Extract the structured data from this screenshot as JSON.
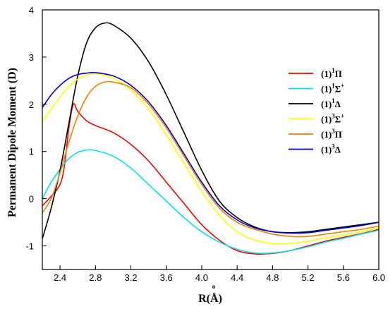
{
  "chart_data": {
    "type": "line",
    "xlabel": "R(Å)",
    "xlabel_main": "R(",
    "xlabel_unit": "Å",
    "xlabel_close": ")",
    "xlabel_ring": "o",
    "ylabel": "Permanent Dipole Moment (D)",
    "xlim": [
      2.2,
      6.0
    ],
    "ylim": [
      -1.5,
      4.0
    ],
    "xticks": [
      2.4,
      2.8,
      3.2,
      3.6,
      4.0,
      4.4,
      4.8,
      5.2,
      5.6,
      6.0
    ],
    "xtick_labels": [
      "2.4",
      "2.8",
      "3.2",
      "3.6",
      "4.0",
      "4.4",
      "4.8",
      "5.2",
      "5.6",
      "6.0"
    ],
    "yticks": [
      -1,
      0,
      1,
      2,
      3,
      4
    ],
    "ytick_labels": [
      "-1",
      "0",
      "1",
      "2",
      "3",
      "4"
    ],
    "grid": false,
    "legend_position": "right",
    "series": [
      {
        "name": "(1)1Π",
        "prefix": "(1)",
        "sup": "1",
        "symbol": "Π",
        "sup2": "",
        "color": "#ff0000",
        "points": [
          [
            2.2,
            -0.15
          ],
          [
            2.3,
            0.05
          ],
          [
            2.4,
            0.3
          ],
          [
            2.45,
            0.7
          ],
          [
            2.5,
            1.5
          ],
          [
            2.55,
            2.0
          ],
          [
            2.6,
            1.85
          ],
          [
            2.7,
            1.65
          ],
          [
            2.8,
            1.55
          ],
          [
            3.0,
            1.4
          ],
          [
            3.2,
            1.15
          ],
          [
            3.4,
            0.8
          ],
          [
            3.6,
            0.35
          ],
          [
            3.8,
            -0.1
          ],
          [
            4.0,
            -0.55
          ],
          [
            4.2,
            -0.88
          ],
          [
            4.4,
            -1.1
          ],
          [
            4.6,
            -1.17
          ],
          [
            4.8,
            -1.16
          ],
          [
            5.0,
            -1.1
          ],
          [
            5.2,
            -1.0
          ],
          [
            5.4,
            -0.9
          ],
          [
            5.6,
            -0.82
          ],
          [
            5.8,
            -0.74
          ],
          [
            6.0,
            -0.65
          ]
        ]
      },
      {
        "name": "(1)1Σ+",
        "prefix": "(1)",
        "sup": "1",
        "symbol": "Σ",
        "sup2": "+",
        "color": "#00e5ee",
        "points": [
          [
            2.2,
            0.0
          ],
          [
            2.3,
            0.35
          ],
          [
            2.4,
            0.62
          ],
          [
            2.5,
            0.85
          ],
          [
            2.6,
            0.98
          ],
          [
            2.7,
            1.03
          ],
          [
            2.8,
            1.02
          ],
          [
            3.0,
            0.9
          ],
          [
            3.2,
            0.65
          ],
          [
            3.4,
            0.3
          ],
          [
            3.6,
            -0.05
          ],
          [
            3.8,
            -0.4
          ],
          [
            4.0,
            -0.7
          ],
          [
            4.2,
            -0.92
          ],
          [
            4.4,
            -1.07
          ],
          [
            4.6,
            -1.15
          ],
          [
            4.8,
            -1.15
          ],
          [
            5.0,
            -1.1
          ],
          [
            5.2,
            -1.02
          ],
          [
            5.4,
            -0.92
          ],
          [
            5.6,
            -0.84
          ],
          [
            5.8,
            -0.75
          ],
          [
            6.0,
            -0.67
          ]
        ]
      },
      {
        "name": "(1)1Δ",
        "prefix": "(1)",
        "sup": "1",
        "symbol": "Δ",
        "sup2": "",
        "color": "#000000",
        "points": [
          [
            2.2,
            -0.85
          ],
          [
            2.3,
            -0.2
          ],
          [
            2.4,
            0.6
          ],
          [
            2.5,
            1.6
          ],
          [
            2.6,
            2.6
          ],
          [
            2.7,
            3.3
          ],
          [
            2.8,
            3.62
          ],
          [
            2.9,
            3.72
          ],
          [
            3.0,
            3.68
          ],
          [
            3.2,
            3.4
          ],
          [
            3.4,
            2.9
          ],
          [
            3.6,
            2.2
          ],
          [
            3.8,
            1.4
          ],
          [
            4.0,
            0.6
          ],
          [
            4.2,
            -0.05
          ],
          [
            4.4,
            -0.4
          ],
          [
            4.6,
            -0.6
          ],
          [
            4.8,
            -0.7
          ],
          [
            5.0,
            -0.72
          ],
          [
            5.2,
            -0.7
          ],
          [
            5.4,
            -0.65
          ],
          [
            5.6,
            -0.6
          ],
          [
            5.8,
            -0.55
          ],
          [
            6.0,
            -0.5
          ]
        ]
      },
      {
        "name": "(1)3Σ+",
        "prefix": "(1)",
        "sup": "3",
        "symbol": "Σ",
        "sup2": "+",
        "color": "#ffff00",
        "points": [
          [
            2.2,
            1.62
          ],
          [
            2.3,
            1.9
          ],
          [
            2.4,
            2.15
          ],
          [
            2.5,
            2.38
          ],
          [
            2.6,
            2.53
          ],
          [
            2.7,
            2.62
          ],
          [
            2.8,
            2.65
          ],
          [
            3.0,
            2.55
          ],
          [
            3.2,
            2.3
          ],
          [
            3.4,
            1.9
          ],
          [
            3.6,
            1.35
          ],
          [
            3.8,
            0.75
          ],
          [
            4.0,
            0.15
          ],
          [
            4.2,
            -0.35
          ],
          [
            4.4,
            -0.7
          ],
          [
            4.6,
            -0.88
          ],
          [
            4.8,
            -0.95
          ],
          [
            5.0,
            -0.95
          ],
          [
            5.2,
            -0.9
          ],
          [
            5.4,
            -0.83
          ],
          [
            5.6,
            -0.77
          ],
          [
            5.8,
            -0.7
          ],
          [
            6.0,
            -0.62
          ]
        ]
      },
      {
        "name": "(1)3Π",
        "prefix": "(1)",
        "sup": "3",
        "symbol": "Π",
        "sup2": "",
        "color": "#f08000",
        "points": [
          [
            2.2,
            -0.3
          ],
          [
            2.3,
            0.0
          ],
          [
            2.4,
            0.55
          ],
          [
            2.5,
            1.2
          ],
          [
            2.6,
            1.75
          ],
          [
            2.7,
            2.15
          ],
          [
            2.8,
            2.38
          ],
          [
            2.9,
            2.47
          ],
          [
            3.0,
            2.47
          ],
          [
            3.2,
            2.35
          ],
          [
            3.4,
            2.0
          ],
          [
            3.6,
            1.5
          ],
          [
            3.8,
            0.9
          ],
          [
            4.0,
            0.3
          ],
          [
            4.2,
            -0.2
          ],
          [
            4.4,
            -0.5
          ],
          [
            4.6,
            -0.65
          ],
          [
            4.8,
            -0.75
          ],
          [
            5.0,
            -0.8
          ],
          [
            5.2,
            -0.8
          ],
          [
            5.4,
            -0.75
          ],
          [
            5.6,
            -0.7
          ],
          [
            5.8,
            -0.65
          ],
          [
            6.0,
            -0.58
          ]
        ]
      },
      {
        "name": "(1)3Δ",
        "prefix": "(1)",
        "sup": "3",
        "symbol": "Δ",
        "sup2": "",
        "color": "#0000cc",
        "points": [
          [
            2.2,
            1.93
          ],
          [
            2.3,
            2.2
          ],
          [
            2.4,
            2.4
          ],
          [
            2.5,
            2.55
          ],
          [
            2.6,
            2.63
          ],
          [
            2.7,
            2.66
          ],
          [
            2.8,
            2.67
          ],
          [
            3.0,
            2.6
          ],
          [
            3.2,
            2.4
          ],
          [
            3.4,
            2.05
          ],
          [
            3.6,
            1.55
          ],
          [
            3.8,
            0.95
          ],
          [
            4.0,
            0.35
          ],
          [
            4.2,
            -0.15
          ],
          [
            4.4,
            -0.45
          ],
          [
            4.6,
            -0.62
          ],
          [
            4.8,
            -0.7
          ],
          [
            5.0,
            -0.73
          ],
          [
            5.2,
            -0.72
          ],
          [
            5.4,
            -0.67
          ],
          [
            5.6,
            -0.62
          ],
          [
            5.8,
            -0.57
          ],
          [
            6.0,
            -0.5
          ]
        ]
      }
    ]
  }
}
